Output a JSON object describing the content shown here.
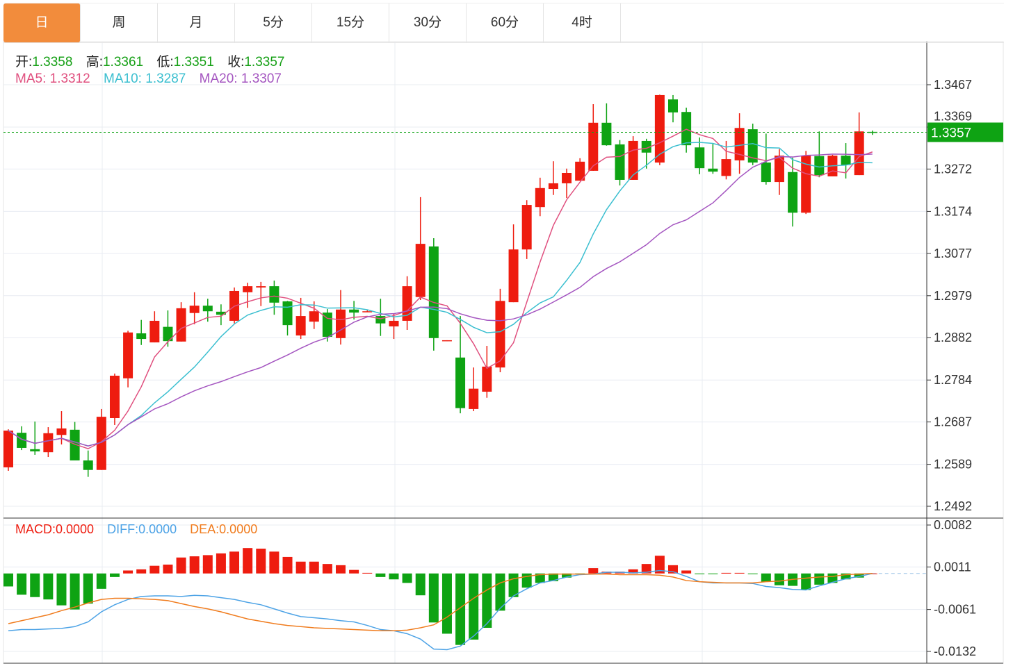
{
  "tabs": [
    {
      "label": "日",
      "active": true
    },
    {
      "label": "周"
    },
    {
      "label": "月"
    },
    {
      "label": "5分"
    },
    {
      "label": "15分"
    },
    {
      "label": "30分"
    },
    {
      "label": "60分"
    },
    {
      "label": "4时"
    }
  ],
  "ohlc_info": {
    "open_label": "开:",
    "open": "1.3358",
    "high_label": "高:",
    "high": "1.3361",
    "low_label": "低:",
    "low": "1.3351",
    "close_label": "收:",
    "close": "1.3357"
  },
  "ma_info": {
    "ma5_label": "MA5:",
    "ma5": "1.3312",
    "ma10_label": "MA10:",
    "ma10": "1.3287",
    "ma20_label": "MA20:",
    "ma20": "1.3307"
  },
  "macd_info": {
    "macd_label": "MACD:",
    "macd": "0.0000",
    "diff_label": "DIFF:",
    "diff": "0.0000",
    "dea_label": "DEA:",
    "dea": "0.0000"
  },
  "colors": {
    "up": "#ee1c0f",
    "down": "#0ea313",
    "ma5": "#e0507f",
    "ma10": "#3bbfd0",
    "ma20": "#a455c0",
    "diff": "#4da3e6",
    "dea": "#f07c1e",
    "accent": "#f28c3c",
    "current_price_bg": "#0ea313"
  },
  "chart_data": [
    {
      "type": "candlestick",
      "ylim": [
        1.2492,
        1.3467
      ],
      "yticks": [
        "1.3467",
        "1.3369",
        "1.3272",
        "1.3174",
        "1.3077",
        "1.2979",
        "1.2882",
        "1.2784",
        "1.2687",
        "1.2589",
        "1.2492"
      ],
      "current_price": "1.3357",
      "grid": true,
      "candles_ohlc": [
        [
          1.2582,
          1.267,
          1.2574,
          1.2667
        ],
        [
          1.2662,
          1.2677,
          1.2622,
          1.2627
        ],
        [
          1.2624,
          1.2688,
          1.2611,
          1.2619
        ],
        [
          1.2617,
          1.2675,
          1.2606,
          1.2661
        ],
        [
          1.2657,
          1.2712,
          1.2635,
          1.2672
        ],
        [
          1.2669,
          1.2687,
          1.2598,
          1.2598
        ],
        [
          1.2598,
          1.2621,
          1.256,
          1.2576
        ],
        [
          1.2576,
          1.2717,
          1.2576,
          1.2699
        ],
        [
          1.2696,
          1.2799,
          1.268,
          1.2794
        ],
        [
          1.2788,
          1.2898,
          1.2767,
          1.2894
        ],
        [
          1.2892,
          1.2923,
          1.2865,
          1.2879
        ],
        [
          1.2871,
          1.2943,
          1.2871,
          1.2921
        ],
        [
          1.2907,
          1.2945,
          1.2861,
          1.2874
        ],
        [
          1.2873,
          1.2964,
          1.2873,
          1.295
        ],
        [
          1.2939,
          1.2987,
          1.2913,
          1.2956
        ],
        [
          1.2956,
          1.2972,
          1.2919,
          1.2943
        ],
        [
          1.2942,
          1.2959,
          1.2911,
          1.2935
        ],
        [
          1.2921,
          1.2998,
          1.2915,
          1.299
        ],
        [
          1.2987,
          1.3009,
          1.2951,
          1.3001
        ],
        [
          1.2998,
          1.3011,
          1.2955,
          1.3001
        ],
        [
          1.3001,
          1.3014,
          1.2935,
          1.2963
        ],
        [
          1.2966,
          1.2967,
          1.2887,
          1.2911
        ],
        [
          1.2887,
          1.2974,
          1.2879,
          1.2932
        ],
        [
          1.2919,
          1.2966,
          1.2902,
          1.2943
        ],
        [
          1.294,
          1.2948,
          1.2873,
          1.2884
        ],
        [
          1.2881,
          1.2992,
          1.2866,
          1.2947
        ],
        [
          1.2947,
          1.2967,
          1.2924,
          1.294
        ],
        [
          1.2942,
          1.2945,
          1.2942,
          1.2943
        ],
        [
          1.2932,
          1.2972,
          1.2886,
          1.2915
        ],
        [
          1.2908,
          1.2937,
          1.2879,
          1.2921
        ],
        [
          1.2921,
          1.3024,
          1.29,
          1.3001
        ],
        [
          1.2976,
          1.3207,
          1.2969,
          1.3099
        ],
        [
          1.3093,
          1.3112,
          1.2852,
          1.2881
        ],
        [
          1.2874,
          1.2876,
          1.2874,
          1.2876
        ],
        [
          1.2836,
          1.2932,
          1.2707,
          1.2719
        ],
        [
          1.2717,
          1.2813,
          1.2712,
          1.2764
        ],
        [
          1.2757,
          1.2863,
          1.2743,
          1.2815
        ],
        [
          1.2813,
          1.2995,
          1.2802,
          1.2967
        ],
        [
          1.2964,
          1.3144,
          1.2964,
          1.3086
        ],
        [
          1.3086,
          1.32,
          1.3064,
          1.3189
        ],
        [
          1.3184,
          1.3252,
          1.3163,
          1.3228
        ],
        [
          1.3226,
          1.329,
          1.3212,
          1.3239
        ],
        [
          1.3239,
          1.3273,
          1.3205,
          1.3263
        ],
        [
          1.3245,
          1.3297,
          1.3245,
          1.3289
        ],
        [
          1.3268,
          1.3422,
          1.3268,
          1.3379
        ],
        [
          1.3379,
          1.3424,
          1.3326,
          1.3327
        ],
        [
          1.3329,
          1.3339,
          1.3234,
          1.3247
        ],
        [
          1.3247,
          1.3348,
          1.3247,
          1.3337
        ],
        [
          1.3337,
          1.3342,
          1.3273,
          1.331
        ],
        [
          1.3287,
          1.3444,
          1.3281,
          1.3443
        ],
        [
          1.3433,
          1.3443,
          1.338,
          1.3403
        ],
        [
          1.3404,
          1.3414,
          1.331,
          1.3327
        ],
        [
          1.3322,
          1.3345,
          1.326,
          1.3274
        ],
        [
          1.3273,
          1.333,
          1.3261,
          1.3266
        ],
        [
          1.3256,
          1.3337,
          1.3248,
          1.3295
        ],
        [
          1.3292,
          1.3401,
          1.3261,
          1.3367
        ],
        [
          1.3364,
          1.3377,
          1.3281,
          1.3287
        ],
        [
          1.3287,
          1.3354,
          1.3236,
          1.3242
        ],
        [
          1.3242,
          1.3318,
          1.3212,
          1.3303
        ],
        [
          1.3265,
          1.3298,
          1.3139,
          1.3171
        ],
        [
          1.3171,
          1.3314,
          1.3168,
          1.3303
        ],
        [
          1.3302,
          1.3359,
          1.3253,
          1.3258
        ],
        [
          1.3255,
          1.3305,
          1.3255,
          1.3303
        ],
        [
          1.3303,
          1.3332,
          1.325,
          1.3281
        ],
        [
          1.3258,
          1.3403,
          1.3258,
          1.3359
        ],
        [
          1.3358,
          1.3361,
          1.3351,
          1.3357
        ]
      ],
      "ma_periods": [
        5,
        10,
        20
      ]
    },
    {
      "type": "bar+line",
      "ylim": [
        -0.0132,
        0.0082
      ],
      "yticks": [
        "0.0082",
        "0.0011",
        "-0.0061",
        "-0.0132"
      ],
      "macd": [
        -0.0022,
        -0.0036,
        -0.004,
        -0.0044,
        -0.0054,
        -0.0061,
        -0.0051,
        -0.0026,
        -0.0006,
        0.0005,
        0.0007,
        0.0013,
        0.0015,
        0.0027,
        0.0029,
        0.0031,
        0.0034,
        0.0037,
        0.0043,
        0.0042,
        0.0037,
        0.0028,
        0.002,
        0.002,
        0.0016,
        0.0014,
        0.0006,
        0.0001,
        -0.0006,
        -0.001,
        -0.0016,
        -0.0037,
        -0.0083,
        -0.0102,
        -0.0121,
        -0.0112,
        -0.0092,
        -0.0063,
        -0.004,
        -0.0024,
        -0.0016,
        -0.0013,
        -0.0007,
        -0.0001,
        0.0009,
        0.0003,
        0.0003,
        0.0007,
        0.0016,
        0.003,
        0.0014,
        0.0005,
        -0.0001,
        -0.0001,
        0.0001,
        0.0001,
        -0.0001,
        -0.0014,
        -0.002,
        -0.0021,
        -0.0028,
        -0.0019,
        -0.0016,
        -0.001,
        -0.0007,
        0.0
      ],
      "diff": [
        -0.0097,
        -0.0095,
        -0.0095,
        -0.0094,
        -0.0093,
        -0.009,
        -0.0082,
        -0.0065,
        -0.0053,
        -0.0044,
        -0.0039,
        -0.0038,
        -0.0038,
        -0.0039,
        -0.0037,
        -0.0038,
        -0.0041,
        -0.0044,
        -0.0049,
        -0.0053,
        -0.006,
        -0.0067,
        -0.0073,
        -0.0075,
        -0.0077,
        -0.008,
        -0.0082,
        -0.0088,
        -0.0095,
        -0.0097,
        -0.0102,
        -0.0111,
        -0.0128,
        -0.0129,
        -0.0123,
        -0.0106,
        -0.0085,
        -0.0059,
        -0.0038,
        -0.0026,
        -0.0016,
        -0.0012,
        -0.0006,
        -0.0002,
        -0.0001,
        0.0002,
        0.0002,
        0.0001,
        0.0002,
        0.0005,
        0.0003,
        -0.0005,
        -0.0014,
        -0.0016,
        -0.0016,
        -0.0016,
        -0.0017,
        -0.0022,
        -0.0024,
        -0.0027,
        -0.0028,
        -0.0021,
        -0.0015,
        -0.0009,
        -0.0005,
        0.0
      ],
      "dea": [
        -0.0085,
        -0.008,
        -0.0075,
        -0.007,
        -0.0063,
        -0.0057,
        -0.005,
        -0.0044,
        -0.0042,
        -0.0042,
        -0.0043,
        -0.0044,
        -0.0046,
        -0.0051,
        -0.0056,
        -0.006,
        -0.0065,
        -0.0071,
        -0.0077,
        -0.0081,
        -0.0085,
        -0.0088,
        -0.009,
        -0.0092,
        -0.0093,
        -0.0094,
        -0.0095,
        -0.0096,
        -0.0097,
        -0.0097,
        -0.0096,
        -0.0092,
        -0.0087,
        -0.0074,
        -0.0058,
        -0.0042,
        -0.0028,
        -0.0016,
        -0.0009,
        -0.0005,
        -0.0002,
        -0.0001,
        -0.0001,
        -0.0001,
        -0.0001,
        -0.0001,
        -0.0002,
        -0.0002,
        -0.0002,
        -0.0003,
        -0.0006,
        -0.0012,
        -0.0014,
        -0.0015,
        -0.0016,
        -0.0016,
        -0.0016,
        -0.0014,
        -0.0013,
        -0.001,
        -0.0008,
        -0.0006,
        -0.0005,
        -0.0002,
        -0.0001,
        0.0
      ]
    }
  ]
}
